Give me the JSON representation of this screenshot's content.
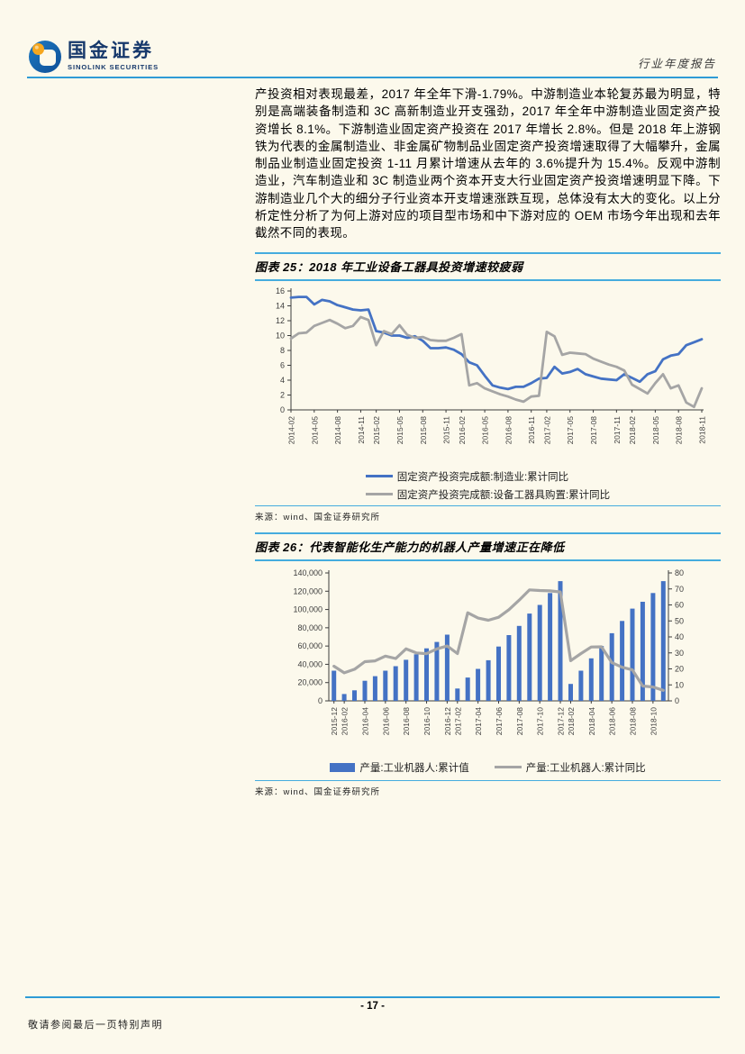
{
  "brand": {
    "name_cn": "国金证券",
    "name_en": "SINOLINK SECURITIES"
  },
  "header": {
    "report_type": "行业年度报告"
  },
  "body_paragraph": "产投资相对表现最差，2017 年全年下滑-1.79%。中游制造业本轮复苏最为明显，特别是高端装备制造和 3C 高新制造业开支强劲，2017 年全年中游制造业固定资产投资增长 8.1%。下游制造业固定资产投资在 2017 年增长 2.8%。但是 2018 年上游钢铁为代表的金属制造业、非金属矿物制品业固定资产投资增速取得了大幅攀升，金属制品业制造业固定投资 1-11 月累计增速从去年的 3.6%提升为 15.4%。反观中游制造业，汽车制造业和 3C 制造业两个资本开支大行业固定资产投资增速明显下降。下游制造业几个大的细分子行业资本开支增速涨跌互现，总体没有太大的变化。以上分析定性分析了为何上游对应的项目型市场和中下游对应的 OEM 市场今年出现和去年截然不同的表现。",
  "figure25": {
    "title_full": "图表 25：2018 年工业设备工器具投资增速较疲弱",
    "source": "来源：wind、国金证券研究所"
  },
  "figure26": {
    "title_full": "图表 26：代表智能化生产能力的机器人产量增速正在降低",
    "source": "来源：wind、国金证券研究所"
  },
  "footer": {
    "page_number": "- 17 -",
    "note": "敬请参阅最后一页特别声明"
  },
  "colors": {
    "page_background": "#FCF9EC",
    "header_rule_blue": "#2E9BD6",
    "figure_rule_blue": "#45ACDE",
    "series_blue": "#4472C4",
    "series_gray": "#A5A5A5",
    "axis_color": "#3d3d3d",
    "logo_blue": "#1668AE",
    "logo_orange": "#F6A71F",
    "brand_navy": "#16386B"
  },
  "chart_data": [
    {
      "type": "line",
      "title": "2018 年工业设备工器具投资增速较疲弱",
      "xlabel": "",
      "ylabel": "",
      "ylim": [
        0,
        16
      ],
      "ytick_step": 2,
      "grid": false,
      "legend_position": "bottom",
      "x": [
        "2014-02",
        "2014-03",
        "2014-04",
        "2014-05",
        "2014-06",
        "2014-07",
        "2014-08",
        "2014-09",
        "2014-10",
        "2014-11",
        "2014-12",
        "2015-02",
        "2015-03",
        "2015-04",
        "2015-05",
        "2015-06",
        "2015-07",
        "2015-08",
        "2015-09",
        "2015-10",
        "2015-11",
        "2015-12",
        "2016-02",
        "2016-03",
        "2016-04",
        "2016-05",
        "2016-06",
        "2016-07",
        "2016-08",
        "2016-09",
        "2016-10",
        "2016-11",
        "2016-12",
        "2017-02",
        "2017-03",
        "2017-04",
        "2017-05",
        "2017-06",
        "2017-07",
        "2017-08",
        "2017-09",
        "2017-10",
        "2017-11",
        "2017-12",
        "2018-02",
        "2018-03",
        "2018-04",
        "2018-05",
        "2018-06",
        "2018-07",
        "2018-08",
        "2018-09",
        "2018-10",
        "2018-11"
      ],
      "x_tick_labels": [
        "2014-02",
        "2014-05",
        "2014-08",
        "2014-11",
        "2015-02",
        "2015-05",
        "2015-08",
        "2015-11",
        "2016-02",
        "2016-05",
        "2016-08",
        "2016-11",
        "2017-02",
        "2017-05",
        "2017-08",
        "2017-11",
        "2018-02",
        "2018-05",
        "2018-08",
        "2018-11"
      ],
      "x_tick_indices": [
        0,
        3,
        6,
        9,
        11,
        14,
        17,
        20,
        22,
        25,
        28,
        31,
        33,
        36,
        39,
        42,
        44,
        47,
        50,
        53
      ],
      "series": [
        {
          "name": "固定资产投资完成额:制造业:累计同比",
          "color": "#4472C4",
          "values": [
            15.1,
            15.2,
            15.2,
            14.2,
            14.8,
            14.6,
            14.1,
            13.8,
            13.5,
            13.4,
            13.5,
            10.6,
            10.4,
            10.0,
            10.0,
            9.7,
            9.9,
            9.3,
            8.3,
            8.3,
            8.4,
            8.1,
            7.5,
            6.4,
            6.0,
            4.6,
            3.3,
            3.0,
            2.8,
            3.1,
            3.1,
            3.6,
            4.2,
            4.3,
            5.8,
            4.9,
            5.1,
            5.5,
            4.8,
            4.5,
            4.2,
            4.1,
            4.0,
            4.8,
            4.3,
            3.8,
            4.8,
            5.2,
            6.8,
            7.3,
            7.5,
            8.7,
            9.1,
            9.5
          ]
        },
        {
          "name": "固定资产投资完成额:设备工器具购置:累计同比",
          "color": "#A5A5A5",
          "values": [
            9.6,
            10.3,
            10.4,
            11.3,
            11.7,
            12.1,
            11.6,
            11.0,
            11.3,
            12.5,
            12.1,
            8.7,
            10.6,
            10.2,
            11.4,
            10.1,
            9.7,
            9.8,
            9.4,
            9.3,
            9.3,
            9.7,
            10.2,
            3.3,
            3.6,
            2.9,
            2.5,
            2.1,
            1.8,
            1.4,
            1.1,
            1.8,
            1.9,
            10.5,
            9.9,
            7.4,
            7.7,
            7.6,
            7.5,
            6.9,
            6.5,
            6.1,
            5.8,
            5.3,
            3.4,
            2.8,
            2.2,
            3.6,
            4.8,
            2.9,
            3.3,
            1.0,
            0.4,
            2.9
          ]
        }
      ]
    },
    {
      "type": "bar+line",
      "title": "代表智能化生产能力的机器人产量增速正在降低",
      "grid": false,
      "legend_position": "bottom",
      "left_ylim": [
        0,
        140000
      ],
      "left_ytick_step": 20000,
      "right_ylim": [
        0,
        80
      ],
      "right_ytick_step": 10,
      "x": [
        "2015-12",
        "2016-02",
        "2016-03",
        "2016-04",
        "2016-05",
        "2016-06",
        "2016-07",
        "2016-08",
        "2016-09",
        "2016-10",
        "2016-11",
        "2016-12",
        "2017-02",
        "2017-03",
        "2017-04",
        "2017-05",
        "2017-06",
        "2017-07",
        "2017-08",
        "2017-09",
        "2017-10",
        "2017-11",
        "2017-12",
        "2018-02",
        "2018-03",
        "2018-04",
        "2018-05",
        "2018-06",
        "2018-07",
        "2018-08",
        "2018-09",
        "2018-10",
        "2018-11"
      ],
      "x_tick_labels": [
        "2015-12",
        "2016-02",
        "2016-04",
        "2016-06",
        "2016-08",
        "2016-10",
        "2016-12",
        "2017-02",
        "2017-04",
        "2017-06",
        "2017-08",
        "2017-10",
        "2017-12",
        "2018-02",
        "2018-04",
        "2018-06",
        "2018-08",
        "2018-10"
      ],
      "x_tick_indices": [
        0,
        1,
        3,
        5,
        7,
        9,
        11,
        12,
        14,
        16,
        18,
        20,
        22,
        23,
        25,
        27,
        29,
        31
      ],
      "series": [
        {
          "name": "产量:工业机器人:累计值",
          "type": "bar",
          "axis": "left",
          "color": "#4472C4",
          "values": [
            33000,
            7500,
            11500,
            22000,
            27000,
            33000,
            38000,
            45000,
            51000,
            57500,
            64500,
            72500,
            13500,
            25500,
            35000,
            44500,
            59500,
            72000,
            82000,
            95500,
            105000,
            118000,
            131000,
            18500,
            33000,
            46500,
            60000,
            74000,
            87500,
            101000,
            108500,
            118000,
            131000
          ]
        },
        {
          "name": "产量:工业机器人:累计同比",
          "type": "line",
          "axis": "right",
          "color": "#A5A5A5",
          "values": [
            21.7,
            17.5,
            19.8,
            24.5,
            25.0,
            28.0,
            26.5,
            32.5,
            30.0,
            29.5,
            32.5,
            34.3,
            29.6,
            55.1,
            51.8,
            50.4,
            52.3,
            57.0,
            63.0,
            69.4,
            69.0,
            68.8,
            68.1,
            25.1,
            29.6,
            33.7,
            33.8,
            23.9,
            21.0,
            19.4,
            9.3,
            8.7,
            6.6
          ]
        }
      ]
    }
  ]
}
